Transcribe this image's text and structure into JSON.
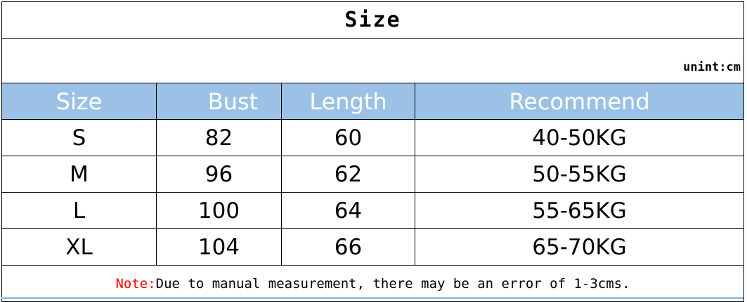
{
  "title": "Size",
  "unit": "unint:cm",
  "header_color": "#9bc2e6",
  "columns": [
    "Size",
    "Bust",
    "Length",
    "Recommend"
  ],
  "rows": [
    [
      "S",
      "82",
      "60",
      "40-50KG"
    ],
    [
      "M",
      "96",
      "62",
      "50-55KG"
    ],
    [
      "L",
      "100",
      "64",
      "55-65KG"
    ],
    [
      "XL",
      "104",
      "66",
      "65-70KG"
    ]
  ],
  "note": {
    "label": "Note:",
    "text": "Due to manual measurement, there may be an error of 1-3cms.",
    "label_color": "#ff0000"
  }
}
